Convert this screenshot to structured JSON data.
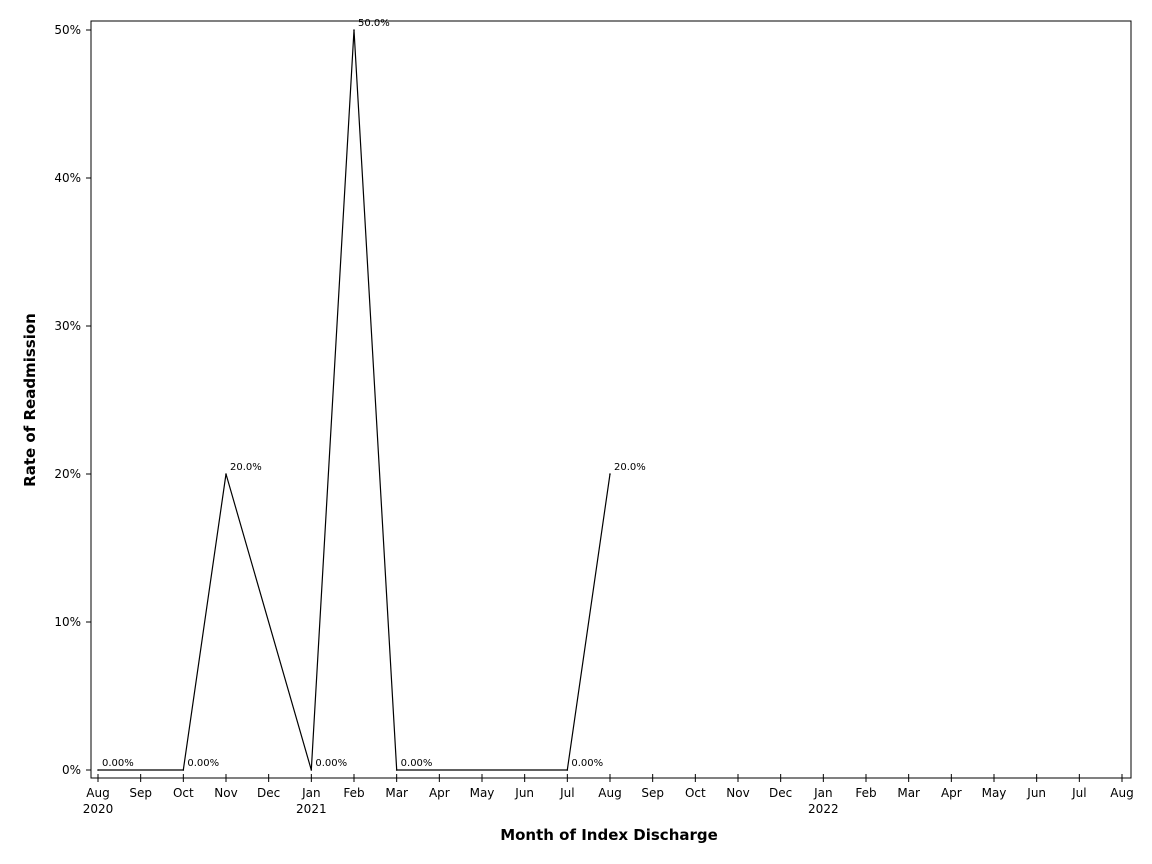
{
  "chart_data": {
    "type": "line",
    "title": "",
    "xlabel": "Month of Index Discharge",
    "ylabel": "Rate of Readmission",
    "ylim": [
      0,
      50
    ],
    "y_ticks": [
      {
        "value": 0,
        "label": "0%"
      },
      {
        "value": 10,
        "label": "10%"
      },
      {
        "value": 20,
        "label": "20%"
      },
      {
        "value": 30,
        "label": "30%"
      },
      {
        "value": 40,
        "label": "40%"
      },
      {
        "value": 50,
        "label": "50%"
      }
    ],
    "x_ticks": [
      {
        "date": "2020-08",
        "label": "Aug",
        "year": "2020"
      },
      {
        "date": "2020-09",
        "label": "Sep"
      },
      {
        "date": "2020-10",
        "label": "Oct"
      },
      {
        "date": "2020-11",
        "label": "Nov"
      },
      {
        "date": "2020-12",
        "label": "Dec"
      },
      {
        "date": "2021-01",
        "label": "Jan",
        "year": "2021"
      },
      {
        "date": "2021-02",
        "label": "Feb"
      },
      {
        "date": "2021-03",
        "label": "Mar"
      },
      {
        "date": "2021-04",
        "label": "Apr"
      },
      {
        "date": "2021-05",
        "label": "May"
      },
      {
        "date": "2021-06",
        "label": "Jun"
      },
      {
        "date": "2021-07",
        "label": "Jul"
      },
      {
        "date": "2021-08",
        "label": "Aug"
      },
      {
        "date": "2021-09",
        "label": "Sep"
      },
      {
        "date": "2021-10",
        "label": "Oct"
      },
      {
        "date": "2021-11",
        "label": "Nov"
      },
      {
        "date": "2021-12",
        "label": "Dec"
      },
      {
        "date": "2022-01",
        "label": "Jan",
        "year": "2022"
      },
      {
        "date": "2022-02",
        "label": "Feb"
      },
      {
        "date": "2022-03",
        "label": "Mar"
      },
      {
        "date": "2022-04",
        "label": "Apr"
      },
      {
        "date": "2022-05",
        "label": "May"
      },
      {
        "date": "2022-06",
        "label": "Jun"
      },
      {
        "date": "2022-07",
        "label": "Jul"
      },
      {
        "date": "2022-08",
        "label": "Aug"
      }
    ],
    "series": [
      {
        "points": [
          {
            "x": "2020-08",
            "y": 0,
            "label": "0.00%"
          },
          {
            "x": "2020-10",
            "y": 0,
            "label": "0.00%"
          },
          {
            "x": "2020-11",
            "y": 20,
            "label": "20.0%"
          },
          {
            "x": "2021-01",
            "y": 0,
            "label": "0.00%"
          },
          {
            "x": "2021-02",
            "y": 50,
            "label": "50.0%"
          },
          {
            "x": "2021-03",
            "y": 0,
            "label": "0.00%"
          },
          {
            "x": "2021-07",
            "y": 0,
            "label": "0.00%"
          },
          {
            "x": "2021-08",
            "y": 20,
            "label": "20.0%"
          }
        ]
      }
    ],
    "grid": false,
    "colors": {
      "line": "#000000",
      "frame": "#000000",
      "background": "#ffffff"
    }
  }
}
